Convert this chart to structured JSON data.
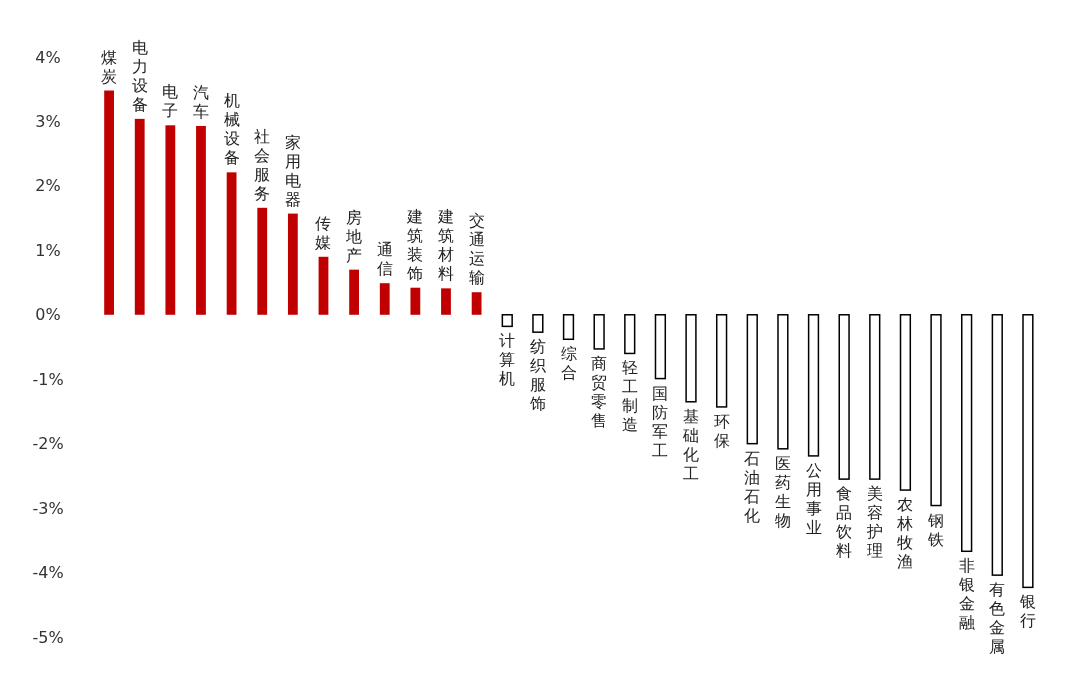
{
  "chart_data": {
    "type": "bar",
    "categories": [
      "煤炭",
      "电力设备",
      "电子",
      "汽车",
      "机械设备",
      "社会服务",
      "家用电器",
      "传媒",
      "房地产",
      "通信",
      "建筑装饰",
      "建筑材料",
      "交通运输",
      "计算机",
      "纺织服饰",
      "综合",
      "商贸零售",
      "轻工制造",
      "国防军工",
      "基础化工",
      "环保",
      "石油石化",
      "医药生物",
      "公用事业",
      "食品饮料",
      "美容护理",
      "农林牧渔",
      "钢铁",
      "非银金融",
      "有色金属",
      "银行"
    ],
    "values": [
      3.48,
      3.04,
      2.94,
      2.93,
      2.21,
      1.66,
      1.57,
      0.9,
      0.7,
      0.49,
      0.42,
      0.41,
      0.35,
      -0.18,
      -0.27,
      -0.38,
      -0.53,
      -0.6,
      -0.99,
      -1.35,
      -1.43,
      -2.0,
      -2.08,
      -2.19,
      -2.55,
      -2.55,
      -2.72,
      -2.96,
      -3.67,
      -4.04,
      -4.23
    ],
    "colors": [
      "#c00000",
      "#c00000",
      "#c00000",
      "#c00000",
      "#c00000",
      "#c00000",
      "#c00000",
      "#c00000",
      "#c00000",
      "#c00000",
      "#c00000",
      "#c00000",
      "#c00000",
      "#ffffff",
      "#ffffff",
      "#ffffff",
      "#ffffff",
      "#ffffff",
      "#ffffff",
      "#ffffff",
      "#ffffff",
      "#ffffff",
      "#ffffff",
      "#ffffff",
      "#ffffff",
      "#ffffff",
      "#ffffff",
      "#ffffff",
      "#ffffff",
      "#ffffff",
      "#ffffff"
    ],
    "ylim": [
      -5,
      4
    ],
    "yticks": [
      {
        "value": 4,
        "label": "4%"
      },
      {
        "value": 3,
        "label": "3%"
      },
      {
        "value": 2,
        "label": "2%"
      },
      {
        "value": 1,
        "label": "1%"
      },
      {
        "value": 0,
        "label": "0%"
      },
      {
        "value": -1,
        "label": "-1%"
      },
      {
        "value": -2,
        "label": "-2%"
      },
      {
        "value": -3,
        "label": "-3%"
      },
      {
        "value": -4,
        "label": "-4%"
      },
      {
        "value": -5,
        "label": "-5%"
      }
    ],
    "grid": false
  }
}
